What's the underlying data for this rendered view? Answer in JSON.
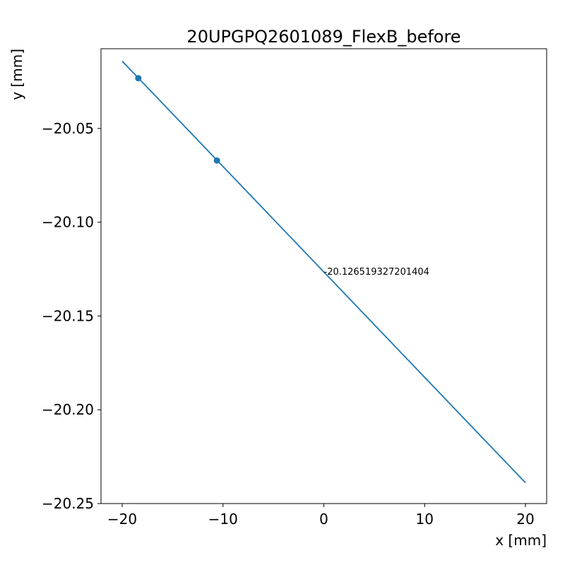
{
  "chart_data": {
    "type": "line",
    "title": "20UPGPQ2601089_FlexB_before",
    "xlabel": "x [mm]",
    "ylabel": "y [mm]",
    "xlim": [
      -22.1,
      22.1
    ],
    "ylim": [
      -20.25,
      -20.0075
    ],
    "xticks": [
      -20,
      -10,
      0,
      10,
      20
    ],
    "xtick_labels": [
      "−20",
      "−10",
      "0",
      "10",
      "20"
    ],
    "yticks": [
      -20.05,
      -20.1,
      -20.15,
      -20.2,
      -20.25
    ],
    "ytick_labels": [
      "−20.05",
      "−20.10",
      "−20.15",
      "−20.20",
      "−20.25"
    ],
    "grid": false,
    "color": "#1f77b4",
    "series": [
      {
        "kind": "line",
        "x": [
          -20,
          20
        ],
        "y": [
          -20.0141,
          -20.2389
        ]
      },
      {
        "kind": "scatter",
        "x": [
          -18.4,
          -10.6
        ],
        "y": [
          -20.0232,
          -20.0671
        ]
      }
    ],
    "annotation": {
      "text": "-20.126519327201404",
      "x": 0,
      "y": -20.1265
    }
  }
}
